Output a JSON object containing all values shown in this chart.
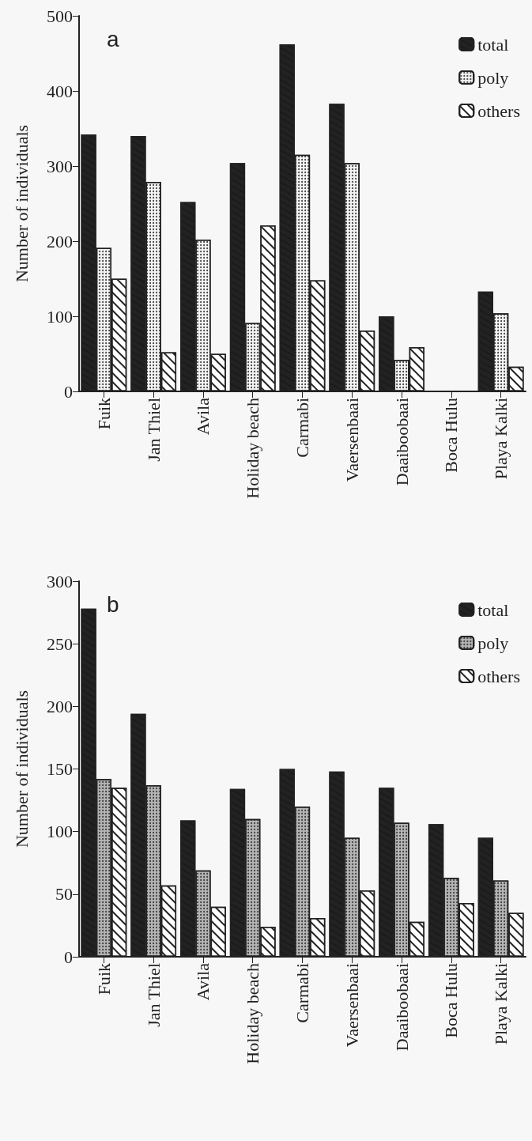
{
  "chart_data": [
    {
      "type": "bar",
      "title": "a",
      "ylabel": "Number of individuals",
      "categories": [
        "Fuik",
        "Jan Thiel",
        "Avila",
        "Holiday beach",
        "Carmabi",
        "Vaersenbaai",
        "Daaiboobaai",
        "Boca Hulu",
        "Playa Kalki"
      ],
      "series": [
        {
          "name": "total",
          "color": "#222222",
          "values": [
            342,
            340,
            252,
            304,
            462,
            383,
            100,
            null,
            133
          ]
        },
        {
          "name": "poly",
          "color": "#f4f4f4",
          "values": [
            191,
            279,
            202,
            91,
            315,
            304,
            42,
            null,
            104
          ]
        },
        {
          "name": "others",
          "color": "#ffffff",
          "values": [
            150,
            52,
            50,
            221,
            148,
            81,
            59,
            null,
            33
          ]
        }
      ],
      "ylim": [
        0,
        500
      ],
      "yticks": [
        0,
        100,
        200,
        300,
        400,
        500
      ],
      "grid": false,
      "legend": "top right"
    },
    {
      "type": "bar",
      "title": "b",
      "ylabel": "Number of individuals",
      "categories": [
        "Fuik",
        "Jan Thiel",
        "Avila",
        "Holiday beach",
        "Carmabi",
        "Vaersenbaai",
        "Daaiboobaai",
        "Boca Hulu",
        "Playa Kalki"
      ],
      "series": [
        {
          "name": "total",
          "color": "#222222",
          "values": [
            278,
            194,
            109,
            134,
            150,
            148,
            135,
            106,
            95
          ]
        },
        {
          "name": "poly",
          "color": "#b4b4b4",
          "values": [
            142,
            137,
            69,
            110,
            120,
            95,
            107,
            63,
            61
          ]
        },
        {
          "name": "others",
          "color": "#ffffff",
          "values": [
            135,
            57,
            40,
            24,
            31,
            53,
            28,
            43,
            35
          ]
        }
      ],
      "ylim": [
        0,
        300
      ],
      "yticks": [
        0,
        50,
        100,
        150,
        200,
        250,
        300
      ],
      "grid": false,
      "legend": "top right"
    }
  ]
}
